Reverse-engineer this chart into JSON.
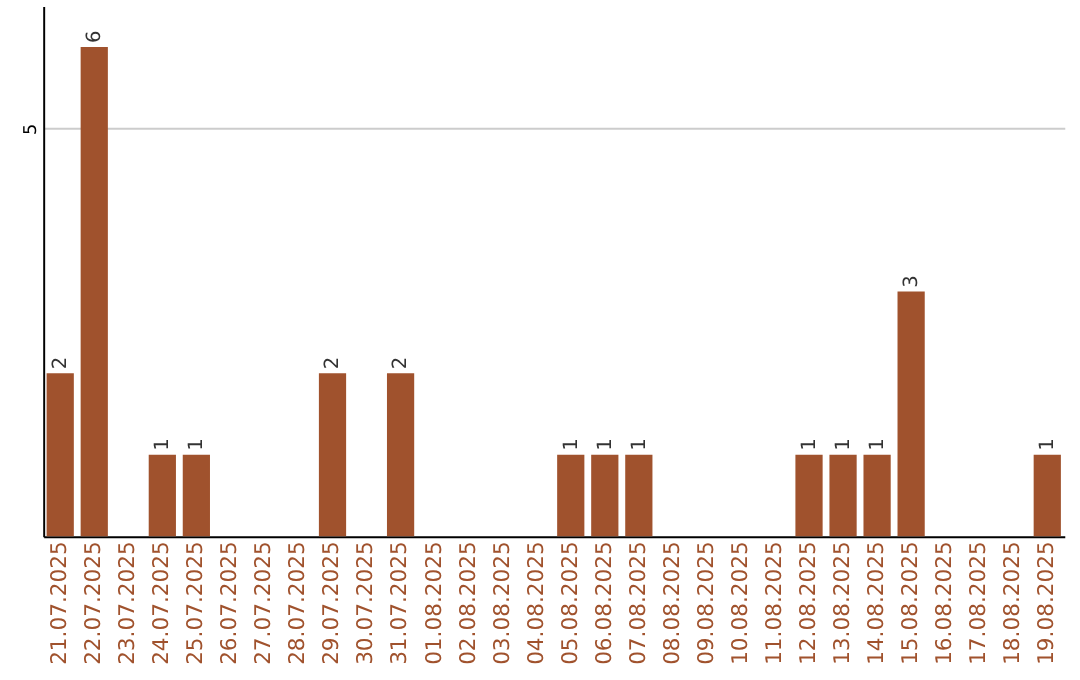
{
  "chart_data": {
    "type": "bar",
    "categories": [
      "21.07.2025",
      "22.07.2025",
      "23.07.2025",
      "24.07.2025",
      "25.07.2025",
      "26.07.2025",
      "27.07.2025",
      "28.07.2025",
      "29.07.2025",
      "30.07.2025",
      "31.07.2025",
      "01.08.2025",
      "02.08.2025",
      "03.08.2025",
      "04.08.2025",
      "05.08.2025",
      "06.08.2025",
      "07.08.2025",
      "08.08.2025",
      "09.08.2025",
      "10.08.2025",
      "11.08.2025",
      "12.08.2025",
      "13.08.2025",
      "14.08.2025",
      "15.08.2025",
      "16.08.2025",
      "17.08.2025",
      "18.08.2025",
      "19.08.2025"
    ],
    "values": [
      2,
      6,
      0,
      1,
      1,
      0,
      0,
      0,
      2,
      0,
      2,
      0,
      0,
      0,
      0,
      1,
      1,
      1,
      0,
      0,
      0,
      0,
      1,
      1,
      1,
      3,
      0,
      0,
      0,
      1
    ],
    "value_labels": [
      "2",
      "6",
      null,
      "1",
      "1",
      null,
      null,
      null,
      "2",
      null,
      "2",
      null,
      null,
      null,
      null,
      "1",
      "1",
      "1",
      null,
      null,
      null,
      null,
      "1",
      "1",
      "1",
      "3",
      null,
      null,
      null,
      "1"
    ],
    "color": "#a0522d",
    "ylim": [
      0,
      6.5
    ],
    "yticks": [
      5
    ],
    "grid": "y"
  }
}
